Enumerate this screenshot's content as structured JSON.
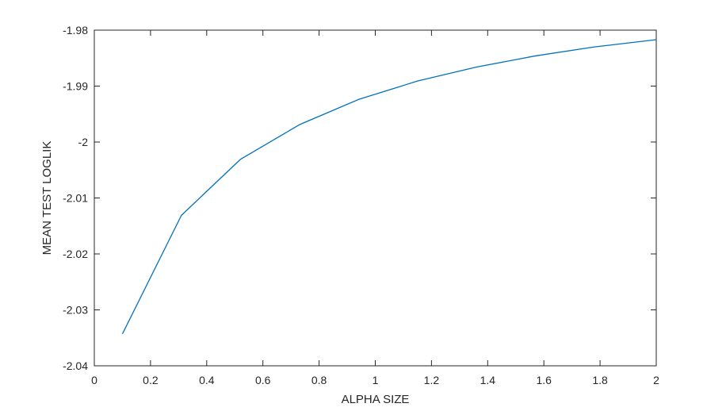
{
  "chart_data": {
    "type": "line",
    "title": "",
    "xlabel": "ALPHA SIZE",
    "ylabel": "MEAN TEST LOGLIK",
    "xlim": [
      0,
      2
    ],
    "ylim": [
      -2.04,
      -1.98
    ],
    "x_ticks": [
      "0",
      "0.2",
      "0.4",
      "0.6",
      "0.8",
      "1",
      "1.2",
      "1.4",
      "1.6",
      "1.8",
      "2"
    ],
    "y_ticks": [
      "-1.98",
      "-1.99",
      "-2",
      "-2.01",
      "-2.02",
      "-2.03",
      "-2.04"
    ],
    "grid": false,
    "series": [
      {
        "color": "#0072BD",
        "x": [
          0.1,
          0.31,
          0.52,
          0.73,
          0.94,
          1.15,
          1.36,
          1.57,
          1.78,
          2.0
        ],
        "y": [
          -2.0343,
          -2.0131,
          -2.0031,
          -1.9969,
          -1.9924,
          -1.9891,
          -1.9866,
          -1.9846,
          -1.983,
          -1.9817
        ]
      }
    ]
  }
}
